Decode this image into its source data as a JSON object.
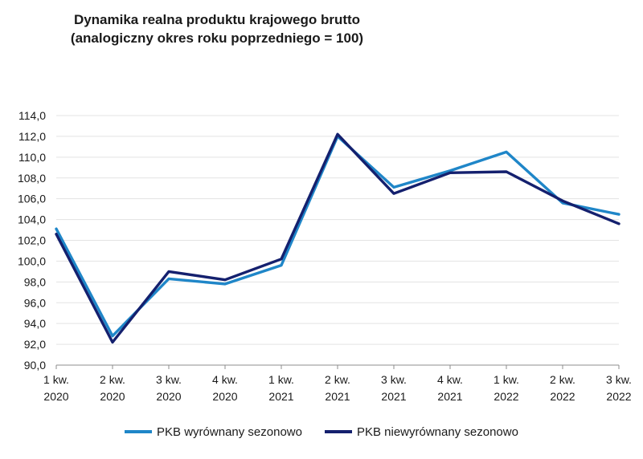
{
  "chart_data": {
    "type": "line",
    "title_lines": [
      "Dynamika realna produktu krajowego brutto",
      "(analogiczny okres roku poprzedniego = 100)"
    ],
    "categories": [
      [
        "1 kw.",
        "2020"
      ],
      [
        "2 kw.",
        "2020"
      ],
      [
        "3 kw.",
        "2020"
      ],
      [
        "4 kw.",
        "2020"
      ],
      [
        "1 kw.",
        "2021"
      ],
      [
        "2 kw.",
        "2021"
      ],
      [
        "3 kw.",
        "2021"
      ],
      [
        "4 kw.",
        "2021"
      ],
      [
        "1 kw.",
        "2022"
      ],
      [
        "2 kw.",
        "2022"
      ],
      [
        "3 kw.",
        "2022"
      ]
    ],
    "series": [
      {
        "name": "PKB wyrównany sezonowo",
        "color": "#1f86c8",
        "values": [
          103.1,
          92.8,
          98.3,
          97.8,
          99.6,
          112.0,
          107.1,
          108.7,
          110.5,
          105.6,
          104.5
        ]
      },
      {
        "name": "PKB niewyrównany sezonowo",
        "color": "#14206e",
        "values": [
          102.6,
          92.2,
          99.0,
          98.2,
          100.2,
          112.2,
          106.5,
          108.5,
          108.6,
          105.8,
          103.6
        ]
      }
    ],
    "ylim": [
      90,
      114
    ],
    "yticks": [
      "90,0",
      "92,0",
      "94,0",
      "96,0",
      "98,0",
      "100,0",
      "102,0",
      "104,0",
      "106,0",
      "108,0",
      "110,0",
      "112,0",
      "114,0"
    ],
    "grid": true,
    "legend_position": "bottom"
  }
}
